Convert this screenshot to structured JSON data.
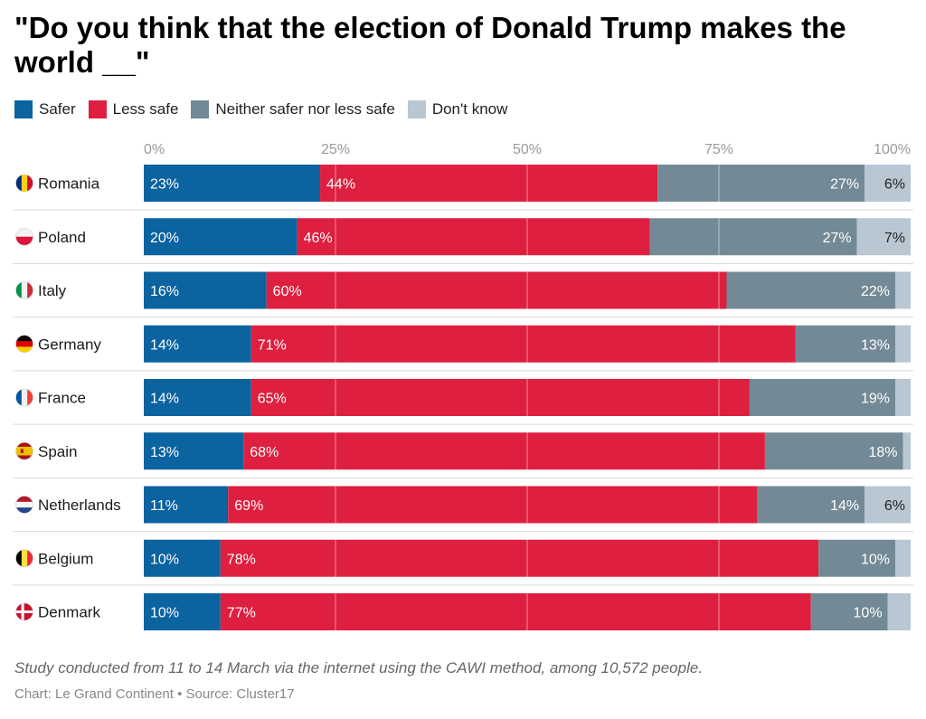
{
  "title": "\"Do you think that the election of Donald Trump makes the world __\"",
  "legend": [
    {
      "label": "Safer",
      "color": "#0b63a0"
    },
    {
      "label": "Less safe",
      "color": "#de1f3f"
    },
    {
      "label": "Neither safer nor less safe",
      "color": "#738a96"
    },
    {
      "label": "Don't know",
      "color": "#b8c7d2"
    }
  ],
  "note": "Study conducted from 11 to 14 March via the internet using the CAWI method, among 10,572 people.",
  "credit": "Chart: Le Grand Continent",
  "source": "Source: Cluster17",
  "chart_data": {
    "type": "bar",
    "orientation": "horizontal",
    "stacked": true,
    "title": "\"Do you think that the election of Donald Trump makes the world __\"",
    "categories": [
      "Romania",
      "Poland",
      "Italy",
      "Germany",
      "France",
      "Spain",
      "Netherlands",
      "Belgium",
      "Denmark"
    ],
    "series": [
      {
        "name": "Safer",
        "color": "#0b63a0",
        "values": [
          23,
          20,
          16,
          14,
          14,
          13,
          11,
          10,
          10
        ]
      },
      {
        "name": "Less safe",
        "color": "#de1f3f",
        "values": [
          44,
          46,
          60,
          71,
          65,
          68,
          69,
          78,
          77
        ]
      },
      {
        "name": "Neither safer nor less safe",
        "color": "#738a96",
        "values": [
          27,
          27,
          22,
          13,
          19,
          18,
          14,
          10,
          10
        ]
      },
      {
        "name": "Don't know",
        "color": "#b8c7d2",
        "values": [
          6,
          7,
          2,
          2,
          2,
          1,
          6,
          2,
          3
        ]
      }
    ],
    "labels_shown": [
      [
        "23%",
        "44%",
        "27%",
        "6%"
      ],
      [
        "20%",
        "46%",
        "27%",
        "7%"
      ],
      [
        "16%",
        "60%",
        "22%",
        ""
      ],
      [
        "14%",
        "71%",
        "13%",
        ""
      ],
      [
        "14%",
        "65%",
        "19%",
        ""
      ],
      [
        "13%",
        "68%",
        "18%",
        ""
      ],
      [
        "11%",
        "69%",
        "14%",
        "6%"
      ],
      [
        "10%",
        "78%",
        "10%",
        ""
      ],
      [
        "10%",
        "77%",
        "10%",
        ""
      ]
    ],
    "ticks": [
      "0%",
      "25%",
      "50%",
      "75%",
      "100%"
    ],
    "tick_values": [
      0,
      25,
      50,
      75,
      100
    ],
    "xlim": [
      0,
      100
    ],
    "grid": true,
    "legend_position": "top-left"
  }
}
